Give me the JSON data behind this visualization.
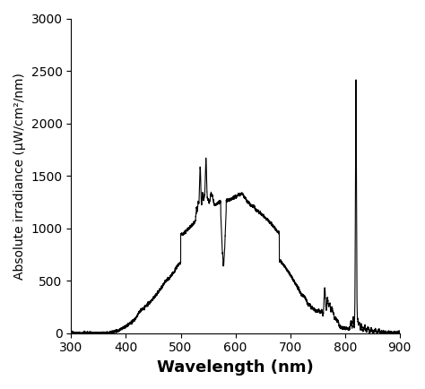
{
  "title": "",
  "xlabel": "Wavelength (nm)",
  "ylabel": "Absolute irradiance (μW/cm²/nm)",
  "xlim": [
    300,
    900
  ],
  "ylim": [
    0,
    3000
  ],
  "xticks": [
    300,
    400,
    500,
    600,
    700,
    800,
    900
  ],
  "yticks": [
    0,
    500,
    1000,
    1500,
    2000,
    2500,
    3000
  ],
  "line_color": "#000000",
  "line_width": 0.8,
  "bg_color": "#ffffff",
  "xlabel_fontsize": 13,
  "ylabel_fontsize": 10,
  "tick_fontsize": 10,
  "xlabel_fontweight": "bold",
  "ylabel_fontweight": "normal"
}
